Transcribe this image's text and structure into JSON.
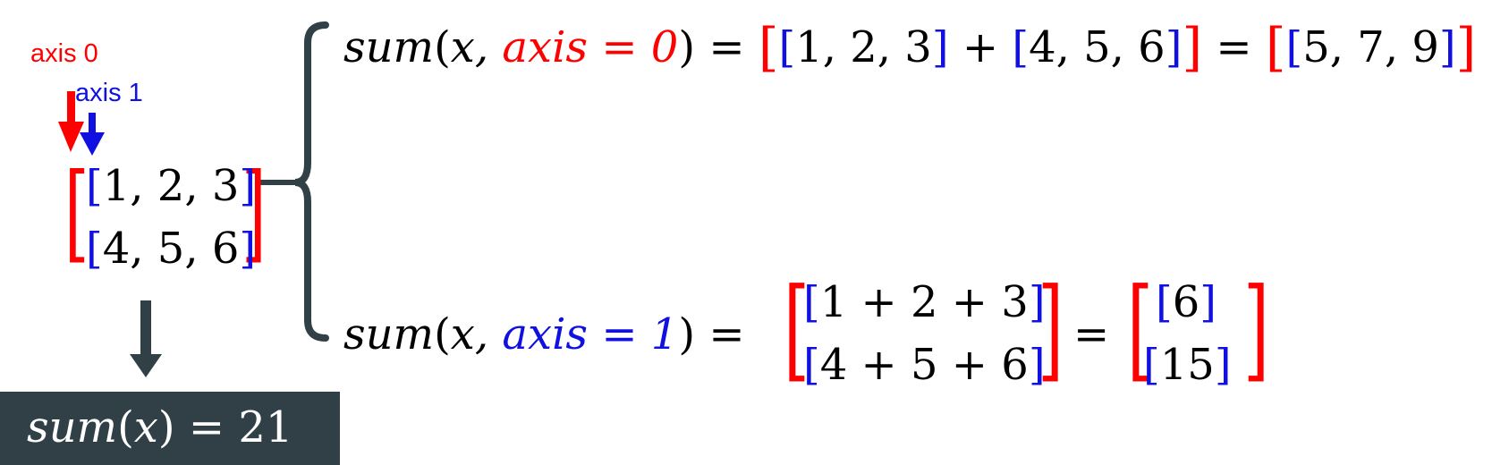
{
  "colors": {
    "axis0": "#ff0000",
    "axis1": "#1010e0",
    "text": "#000000",
    "connector": "#314046",
    "result_bg": "#314046",
    "result_text": "#ffffff"
  },
  "labels": {
    "axis0": "axis 0",
    "axis1": "axis 1"
  },
  "icons": {
    "axis0_arrow": "down-arrow-red",
    "axis1_arrow": "down-arrow-blue",
    "down_arrow": "down-arrow-dark",
    "brace": "left-curly-brace"
  },
  "matrix": {
    "row1": "1, 2, 3",
    "row2": "4, 5, 6"
  },
  "axis0_eq": {
    "fn": "sum",
    "arg": "x,",
    "axis": "axis = 0",
    "equals": "=",
    "term1": "1, 2, 3",
    "plus": "+",
    "term2": "4, 5, 6",
    "equals2": "=",
    "result": "5, 7, 9"
  },
  "axis1_eq": {
    "fn": "sum",
    "arg": "x,",
    "axis": "axis = 1",
    "equals": "=",
    "row1": "1 + 2 + 3",
    "row2": "4 + 5 + 6",
    "equals2": "=",
    "res1": "6",
    "res2": "15"
  },
  "total": {
    "fn": "sum",
    "arg": "x",
    "equals": "= 21"
  }
}
